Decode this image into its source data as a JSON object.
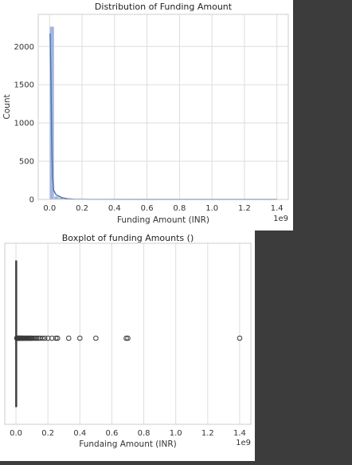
{
  "chart_data": [
    {
      "type": "histogram",
      "title": "Distribution of Funding Amount",
      "xlabel": "Funding Amount (INR)",
      "ylabel": "Count",
      "x_offset_text": "1e9",
      "xlim": [
        -0.07,
        1.47
      ],
      "ylim": [
        0,
        2420
      ],
      "xticks": [
        0.0,
        0.2,
        0.4,
        0.6,
        0.8,
        1.0,
        1.2,
        1.4
      ],
      "xtick_labels": [
        "0.0",
        "0.2",
        "0.4",
        "0.6",
        "0.8",
        "1.0",
        "1.2",
        "1.4"
      ],
      "yticks": [
        0,
        500,
        1000,
        1500,
        2000
      ],
      "ytick_labels": [
        "0",
        "500",
        "1000",
        "1500",
        "2000"
      ],
      "bins": [
        {
          "x0": 0.0,
          "x1": 0.028,
          "count": 2260
        },
        {
          "x0": 0.028,
          "x1": 0.056,
          "count": 40
        },
        {
          "x0": 0.056,
          "x1": 0.084,
          "count": 25
        },
        {
          "x0": 0.084,
          "x1": 0.112,
          "count": 10
        },
        {
          "x0": 0.112,
          "x1": 0.14,
          "count": 5
        },
        {
          "x0": 0.14,
          "x1": 0.168,
          "count": 3
        },
        {
          "x0": 0.168,
          "x1": 0.196,
          "count": 2
        },
        {
          "x0": 0.196,
          "x1": 0.224,
          "count": 1
        },
        {
          "x0": 0.224,
          "x1": 0.252,
          "count": 1
        }
      ],
      "kde": [
        {
          "x": 0.003,
          "y": 2170
        },
        {
          "x": 0.008,
          "y": 1600
        },
        {
          "x": 0.013,
          "y": 800
        },
        {
          "x": 0.018,
          "y": 300
        },
        {
          "x": 0.025,
          "y": 120
        },
        {
          "x": 0.04,
          "y": 60
        },
        {
          "x": 0.06,
          "y": 40
        },
        {
          "x": 0.08,
          "y": 20
        },
        {
          "x": 0.11,
          "y": 8
        },
        {
          "x": 0.15,
          "y": 3
        },
        {
          "x": 0.25,
          "y": 1
        },
        {
          "x": 0.5,
          "y": 0
        },
        {
          "x": 1.0,
          "y": 0
        },
        {
          "x": 1.4,
          "y": 0
        }
      ],
      "colors": {
        "bar": "#8fa8d8",
        "kde": "#4c72b0",
        "grid": "#dddddd"
      },
      "grid": true
    },
    {
      "type": "boxplot",
      "title": "Boxplot of funding Amounts ()",
      "xlabel": "Fundaing Amount (INR)",
      "x_offset_text": "1e9",
      "xlim": [
        -0.07,
        1.47
      ],
      "xticks": [
        0.0,
        0.2,
        0.4,
        0.6,
        0.8,
        1.0,
        1.2,
        1.4
      ],
      "xtick_labels": [
        "0.0",
        "0.2",
        "0.4",
        "0.6",
        "0.8",
        "1.0",
        "1.2",
        "1.4"
      ],
      "box": {
        "whisker_low": 0.0,
        "q1": 0.0005,
        "median": 0.001,
        "q3": 0.002,
        "whisker_high": 0.003
      },
      "outliers": [
        0.005,
        0.008,
        0.011,
        0.014,
        0.017,
        0.02,
        0.023,
        0.026,
        0.03,
        0.034,
        0.038,
        0.042,
        0.046,
        0.05,
        0.055,
        0.06,
        0.065,
        0.07,
        0.075,
        0.08,
        0.085,
        0.09,
        0.095,
        0.1,
        0.11,
        0.12,
        0.13,
        0.14,
        0.15,
        0.165,
        0.18,
        0.2,
        0.225,
        0.25,
        0.26,
        0.33,
        0.4,
        0.5,
        0.69,
        0.7,
        1.4
      ],
      "colors": {
        "box": "#555555",
        "grid": "#dddddd"
      },
      "grid": true
    }
  ]
}
